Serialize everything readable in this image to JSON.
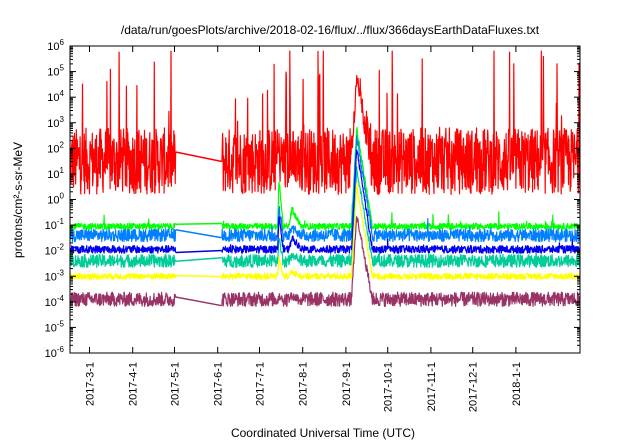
{
  "chart_data": {
    "type": "line",
    "title": "/data/run/goesPlots/archive/2018-02-16/flux/../flux/366daysEarthDataFluxes.txt",
    "xlabel": "Coordinated Universal Time (UTC)",
    "ylabel": "protons/cm²-s-sr-MeV",
    "yscale": "log",
    "ylim_exponents": [
      -6,
      6
    ],
    "y_tick_labels": [
      {
        "base": "10",
        "exp": "-6"
      },
      {
        "base": "10",
        "exp": "-5"
      },
      {
        "base": "10",
        "exp": "-4"
      },
      {
        "base": "10",
        "exp": "-3"
      },
      {
        "base": "10",
        "exp": "-2"
      },
      {
        "base": "10",
        "exp": "-1"
      },
      {
        "base": "10",
        "exp": "0"
      },
      {
        "base": "10",
        "exp": "1"
      },
      {
        "base": "10",
        "exp": "2"
      },
      {
        "base": "10",
        "exp": "3"
      },
      {
        "base": "10",
        "exp": "4"
      },
      {
        "base": "10",
        "exp": "5"
      },
      {
        "base": "10",
        "exp": "6"
      }
    ],
    "x_range": [
      "2017-02-15",
      "2018-02-16"
    ],
    "x_ticks": [
      {
        "label": "2017-3-1",
        "date": "2017-03-01"
      },
      {
        "label": "2017-4-1",
        "date": "2017-04-01"
      },
      {
        "label": "2017-5-1",
        "date": "2017-05-01"
      },
      {
        "label": "2017-6-1",
        "date": "2017-06-01"
      },
      {
        "label": "2017-7-1",
        "date": "2017-07-01"
      },
      {
        "label": "2017-8-1",
        "date": "2017-08-01"
      },
      {
        "label": "2017-9-1",
        "date": "2017-09-01"
      },
      {
        "label": "2017-10-1",
        "date": "2017-10-01"
      },
      {
        "label": "2017-11-1",
        "date": "2017-11-01"
      },
      {
        "label": "2017-12-1",
        "date": "2017-12-01"
      },
      {
        "label": "2018-1-1",
        "date": "2018-01-01"
      }
    ],
    "data_gap": [
      "2017-05-02",
      "2017-06-04"
    ],
    "grid": false,
    "legend": "none",
    "series": [
      {
        "color": "#ff0000",
        "base_log": 1.5,
        "noise_log": 1.3,
        "spike_prob": 0.05,
        "spike_max": 4.5
      },
      {
        "color": "#00ff00",
        "base_log": -1.05,
        "noise_log": 0.12,
        "spike_prob": 0.01,
        "spike_max": 0.5
      },
      {
        "color": "#0080ff",
        "base_log": -1.4,
        "noise_log": 0.25,
        "spike_prob": 0.005,
        "spike_max": 0.5
      },
      {
        "color": "#00cc99",
        "base_log": -2.4,
        "noise_log": 0.25,
        "spike_prob": 0.005,
        "spike_max": 0.4
      },
      {
        "color": "#0000ee",
        "base_log": -1.95,
        "noise_log": 0.15,
        "spike_prob": 0.005,
        "spike_max": 0.4
      },
      {
        "color": "#ffff00",
        "base_log": -3.0,
        "noise_log": 0.12,
        "spike_prob": 0.004,
        "spike_max": 0.3
      },
      {
        "color": "#993366",
        "base_log": -3.9,
        "noise_log": 0.28,
        "spike_prob": 0.0,
        "spike_max": 0.0
      }
    ],
    "events": [
      {
        "start": "2017-07-14",
        "end": "2017-07-18",
        "peak_logs": [
          1.0,
          0.8,
          -0.3,
          -1.5,
          -0.6,
          -2.3,
          -3.8
        ]
      },
      {
        "start": "2017-07-22",
        "end": "2017-07-31",
        "peak_logs": [
          1.0,
          -0.4,
          -1.1,
          -2.2,
          -1.5,
          -2.8,
          -3.8
        ]
      },
      {
        "start": "2017-09-05",
        "end": "2017-09-20",
        "peak_logs": [
          4.8,
          2.8,
          2.5,
          1.2,
          2.0,
          0.5,
          -0.6
        ]
      }
    ]
  }
}
